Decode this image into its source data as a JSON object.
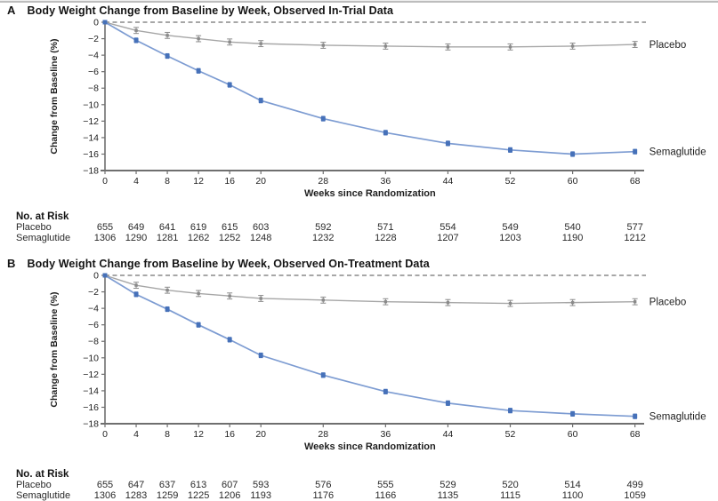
{
  "colors": {
    "semaglutide_line": "#7d9cd2",
    "semaglutide_marker": "#4671b9",
    "placebo_line": "#a6a6a6",
    "placebo_marker": "#8a8a8a",
    "zero_dash": "#8a8a8a",
    "axis": "#6f6f6f",
    "text": "#1e1e1e"
  },
  "chart_data": [
    {
      "type": "line",
      "panel": "A",
      "title": "Body Weight Change from Baseline by Week, Observed In-Trial Data",
      "xlabel": "Weeks since Randomization",
      "ylabel": "Change from Baseline (%)",
      "x": [
        0,
        4,
        8,
        12,
        16,
        20,
        28,
        36,
        44,
        52,
        60,
        68
      ],
      "yticks": [
        0,
        -2,
        -4,
        -6,
        -8,
        -10,
        -12,
        -14,
        -16,
        -18
      ],
      "xlim": [
        0,
        70
      ],
      "ylim": [
        -18,
        0
      ],
      "grid": false,
      "legend_position": "right-of-line-ends",
      "series": [
        {
          "name": "Placebo",
          "values": [
            0,
            -1.0,
            -1.6,
            -2.0,
            -2.4,
            -2.6,
            -2.8,
            -2.9,
            -3.0,
            -3.0,
            -2.9,
            -2.7
          ]
        },
        {
          "name": "Semaglutide",
          "values": [
            0,
            -2.2,
            -4.1,
            -5.9,
            -7.6,
            -9.5,
            -11.7,
            -13.4,
            -14.7,
            -15.5,
            -16.0,
            -15.7
          ]
        }
      ],
      "risk_table": {
        "header": "No. at Risk",
        "rows": [
          {
            "label": "Placebo",
            "values": [
              655,
              649,
              641,
              619,
              615,
              603,
              592,
              571,
              554,
              549,
              540,
              577
            ]
          },
          {
            "label": "Semaglutide",
            "values": [
              1306,
              1290,
              1281,
              1262,
              1252,
              1248,
              1232,
              1228,
              1207,
              1203,
              1190,
              1212
            ]
          }
        ]
      }
    },
    {
      "type": "line",
      "panel": "B",
      "title": "Body Weight Change from Baseline by Week, Observed On-Treatment Data",
      "xlabel": "Weeks since Randomization",
      "ylabel": "Change from Baseline (%)",
      "x": [
        0,
        4,
        8,
        12,
        16,
        20,
        28,
        36,
        44,
        52,
        60,
        68
      ],
      "yticks": [
        0,
        -2,
        -4,
        -6,
        -8,
        -10,
        -12,
        -14,
        -16,
        -18
      ],
      "xlim": [
        0,
        70
      ],
      "ylim": [
        -18,
        0
      ],
      "grid": false,
      "legend_position": "right-of-line-ends",
      "series": [
        {
          "name": "Placebo",
          "values": [
            0,
            -1.2,
            -1.8,
            -2.2,
            -2.5,
            -2.8,
            -3.0,
            -3.2,
            -3.3,
            -3.4,
            -3.3,
            -3.2
          ]
        },
        {
          "name": "Semaglutide",
          "values": [
            0,
            -2.3,
            -4.1,
            -6.0,
            -7.8,
            -9.7,
            -12.1,
            -14.1,
            -15.5,
            -16.4,
            -16.8,
            -17.1
          ]
        }
      ],
      "risk_table": {
        "header": "No. at Risk",
        "rows": [
          {
            "label": "Placebo",
            "values": [
              655,
              647,
              637,
              613,
              607,
              593,
              576,
              555,
              529,
              520,
              514,
              499
            ]
          },
          {
            "label": "Semaglutide",
            "values": [
              1306,
              1283,
              1259,
              1225,
              1206,
              1193,
              1176,
              1166,
              1135,
              1115,
              1100,
              1059
            ]
          }
        ]
      }
    }
  ]
}
